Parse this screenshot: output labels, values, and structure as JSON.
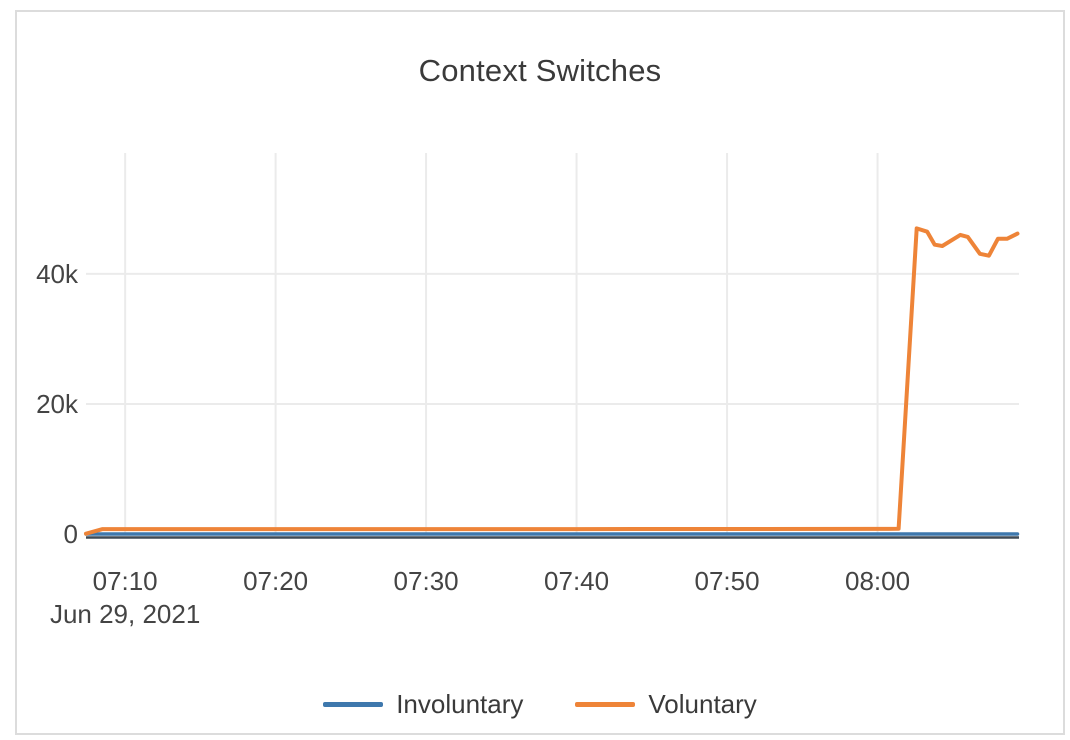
{
  "page": {
    "background_color": "#ffffff",
    "card_border_color": "#dcdcdc",
    "grid_color": "#ebebeb",
    "axis_zeroline_color": "#3f4a55",
    "text_color": "#3a3a3a",
    "tick_text_color": "#444444"
  },
  "chart_data": {
    "type": "line",
    "title": "Context Switches",
    "x_axis": {
      "date_label": "Jun 29, 2021",
      "unit": "time (HH:MM), minutes since midnight used as numeric t",
      "ticks": [
        {
          "label": "07:10",
          "t": 430
        },
        {
          "label": "07:20",
          "t": 440
        },
        {
          "label": "07:30",
          "t": 450
        },
        {
          "label": "07:40",
          "t": 460
        },
        {
          "label": "07:50",
          "t": 470
        },
        {
          "label": "08:00",
          "t": 480
        }
      ],
      "range": [
        427.4,
        489.4
      ]
    },
    "y_axis": {
      "ticks": [
        {
          "label": "0",
          "v": 0
        },
        {
          "label": "20k",
          "v": 20000
        },
        {
          "label": "40k",
          "v": 40000
        }
      ],
      "range": [
        0,
        58600
      ]
    },
    "grid": {
      "vertical_at": [
        430,
        440,
        450,
        460,
        470,
        480
      ],
      "horizontal_at": [
        20000,
        40000
      ],
      "show": true
    },
    "legend": {
      "position": "bottom-center",
      "items": [
        {
          "label": "Involuntary",
          "color": "#3e78ad"
        },
        {
          "label": "Voluntary",
          "color": "#ee8438"
        }
      ]
    },
    "series": [
      {
        "name": "Involuntary",
        "color": "#3e78ad",
        "stroke_width": 3.5,
        "points": [
          [
            427.4,
            0
          ],
          [
            489.3,
            0
          ]
        ]
      },
      {
        "name": "Voluntary",
        "color": "#ee8438",
        "stroke_width": 4,
        "points": [
          [
            427.4,
            50
          ],
          [
            428.5,
            750
          ],
          [
            440.0,
            750
          ],
          [
            450.0,
            750
          ],
          [
            460.0,
            760
          ],
          [
            470.0,
            770
          ],
          [
            480.0,
            790
          ],
          [
            481.4,
            800
          ],
          [
            482.6,
            47000
          ],
          [
            483.3,
            46500
          ],
          [
            483.8,
            44500
          ],
          [
            484.3,
            44300
          ],
          [
            485.5,
            46000
          ],
          [
            486.0,
            45700
          ],
          [
            486.8,
            43100
          ],
          [
            487.4,
            42800
          ],
          [
            488.0,
            45400
          ],
          [
            488.6,
            45400
          ],
          [
            489.3,
            46200
          ]
        ]
      }
    ]
  }
}
